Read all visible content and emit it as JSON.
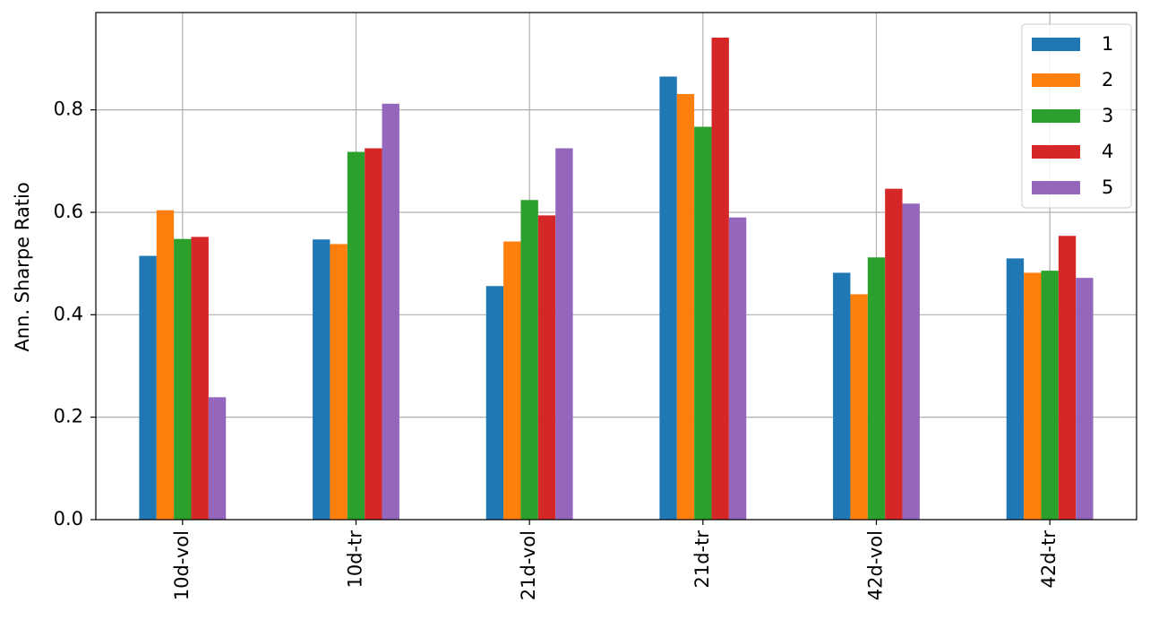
{
  "chart_data": {
    "type": "bar",
    "y_label": "Ann. Sharpe Ratio",
    "categories": [
      "10d-vol",
      "10d-tr",
      "21d-vol",
      "21d-tr",
      "42d-vol",
      "42d-tr"
    ],
    "series": [
      {
        "name": "1",
        "color": "#1f77b4",
        "values": [
          0.515,
          0.547,
          0.456,
          0.865,
          0.482,
          0.51
        ]
      },
      {
        "name": "2",
        "color": "#ff7f0e",
        "values": [
          0.604,
          0.538,
          0.543,
          0.831,
          0.44,
          0.482
        ]
      },
      {
        "name": "3",
        "color": "#2ca02c",
        "values": [
          0.548,
          0.718,
          0.624,
          0.767,
          0.512,
          0.486
        ]
      },
      {
        "name": "4",
        "color": "#d62728",
        "values": [
          0.552,
          0.725,
          0.594,
          0.941,
          0.646,
          0.554
        ]
      },
      {
        "name": "5",
        "color": "#9467bd",
        "values": [
          0.239,
          0.812,
          0.725,
          0.59,
          0.617,
          0.472
        ]
      }
    ],
    "ylim": [
      0,
      0.99
    ],
    "yticks": [
      {
        "value": 0,
        "label": "0.0"
      },
      0.2,
      0.4,
      0.6,
      0.8
    ],
    "grid": true,
    "legend": "upper right"
  }
}
